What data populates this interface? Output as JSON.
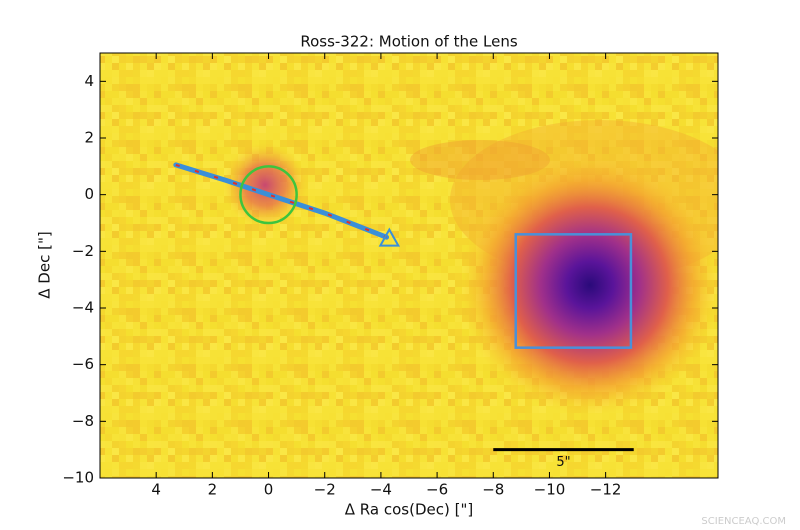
{
  "chart_data": {
    "type": "sky-image",
    "title": "Ross-322: Motion of the Lens",
    "x_label": "Δ Ra cos(Dec) [\"]",
    "y_label": "Δ Dec [\"]",
    "xlim": [
      6,
      -16
    ],
    "ylim": [
      -10,
      5
    ],
    "xticks": [
      4,
      2,
      0,
      {
        "value": -2,
        "label": "−2"
      },
      {
        "value": -4,
        "label": "−4"
      },
      {
        "value": -6,
        "label": "−6"
      },
      {
        "value": -8,
        "label": "−8"
      },
      {
        "value": -10,
        "label": "−10"
      },
      {
        "value": -12,
        "label": "−12"
      }
    ],
    "yticks": [
      4,
      2,
      0,
      {
        "value": -2,
        "label": "−2"
      },
      {
        "value": -4,
        "label": "−4"
      },
      {
        "value": -6,
        "label": "−6"
      },
      {
        "value": -8,
        "label": "−8"
      },
      {
        "value": -10,
        "label": "−10"
      }
    ],
    "trajectory": {
      "x": [
        3.3,
        1.5,
        0,
        -2,
        -4.2
      ],
      "y": [
        1.05,
        0.5,
        0,
        -0.65,
        -1.5
      ],
      "color": "#3a8fd8",
      "dash_color": "#e0302a"
    },
    "end_marker": {
      "x": -4.3,
      "y": -1.55,
      "color": "#3a8fd8"
    },
    "circle": {
      "x": 0,
      "y": 0,
      "r": 1,
      "color": "#3ec43e"
    },
    "box": {
      "x": [
        -8.8,
        -12.9
      ],
      "y": [
        -1.4,
        -5.4
      ],
      "color": "#4a90d9"
    },
    "scale_bar": {
      "x": [
        -8,
        -13
      ],
      "y": -9,
      "label": "5\""
    },
    "watermark": "SCIENCEAQ.COM"
  }
}
